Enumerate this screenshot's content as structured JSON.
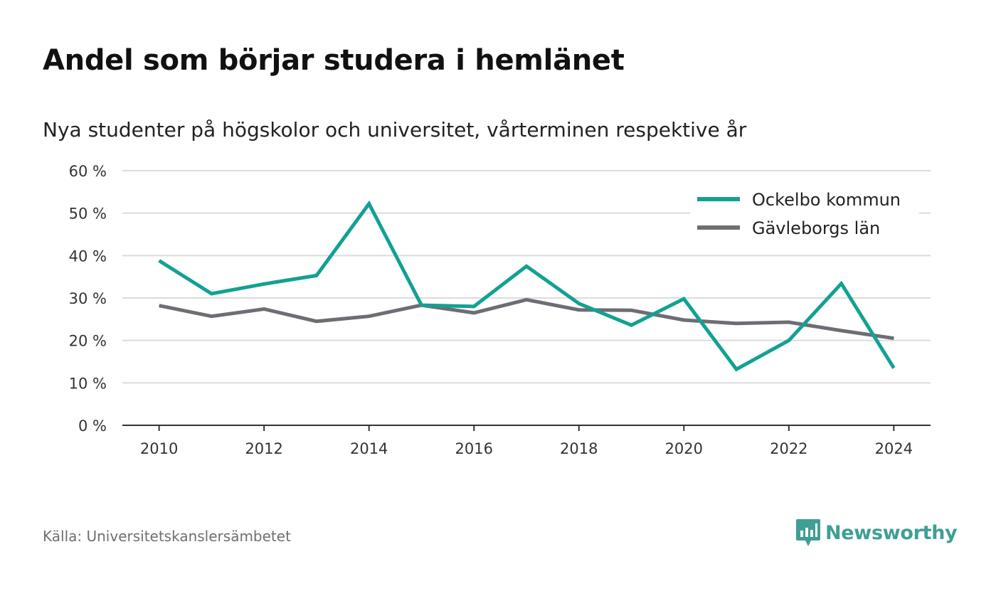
{
  "title": "Andel som börjar studera i hemlänet",
  "subtitle": "Nya studenter på högskolor och universitet, vårterminen respektive år",
  "source": "Källa: Universitetskanslersämbetet",
  "brand": {
    "name": "Newsworthy",
    "color": "#3f9e96",
    "icon": "newsworthy-logo-icon"
  },
  "chart_data": {
    "type": "line",
    "x": [
      2010,
      2011,
      2012,
      2013,
      2014,
      2015,
      2016,
      2017,
      2018,
      2019,
      2020,
      2021,
      2022,
      2023,
      2024
    ],
    "x_ticks": [
      2010,
      2012,
      2014,
      2016,
      2018,
      2020,
      2022,
      2024
    ],
    "x_tick_labels": [
      "2010",
      "2012",
      "2014",
      "2016",
      "2018",
      "2020",
      "2022",
      "2024"
    ],
    "y_ticks": [
      0,
      10,
      20,
      30,
      40,
      50,
      60
    ],
    "y_tick_labels": [
      "0 %",
      "10 %",
      "20 %",
      "30 %",
      "40 %",
      "50 %",
      "60 %"
    ],
    "ylim": [
      0,
      60
    ],
    "xlim": [
      2009.3,
      2024.7
    ],
    "grid": true,
    "legend_position": "top-right",
    "series": [
      {
        "name": "Ockelbo kommun",
        "color": "#12a193",
        "values": [
          38.8,
          31.0,
          33.3,
          35.3,
          52.2,
          28.3,
          28.0,
          37.5,
          28.7,
          23.6,
          29.8,
          13.2,
          20.0,
          33.4,
          13.5
        ]
      },
      {
        "name": "Gävleborgs län",
        "color": "#6e6d74",
        "values": [
          28.2,
          25.7,
          27.4,
          24.5,
          25.7,
          28.3,
          26.5,
          29.6,
          27.2,
          27.1,
          24.8,
          24.0,
          24.3,
          22.3,
          20.5
        ]
      }
    ]
  }
}
